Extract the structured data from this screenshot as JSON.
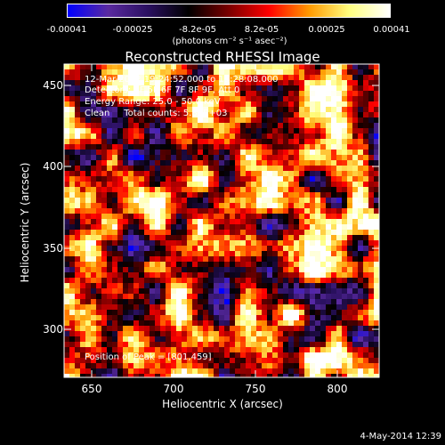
{
  "colorbar": {
    "ticks": [
      "-0.00041",
      "-0.00025",
      "-8.2e-05",
      "8.2e-05",
      "0.00025",
      "0.00041"
    ],
    "unit": "(photons cm⁻² s⁻¹ asec⁻²)",
    "range": [
      -0.00041,
      0.00041
    ]
  },
  "chart_data": {
    "type": "heatmap",
    "title": "Reconstructed RHESSI Image",
    "xlabel": "Heliocentric X (arcsec)",
    "ylabel": "Heliocentric Y (arcsec)",
    "xlim": [
      633,
      825
    ],
    "ylim": [
      268,
      463
    ],
    "xticks": [
      "650",
      "700",
      "750",
      "800"
    ],
    "yticks": [
      "450",
      "400",
      "350",
      "300"
    ],
    "colormap": [
      "#0000ff",
      "#5a2aa0",
      "#2a1060",
      "#000000",
      "#7a0000",
      "#ff0000",
      "#ff9a00",
      "#ffff80",
      "#ffffff"
    ],
    "annotations": {
      "time": "12-Mar-2012 19:24:52.000 to 19:28:08.000",
      "detectors": "Detectors: 3F 5F 6F 7F 8F 9F, Att 0",
      "energy": "Energy Range: 25.0 - 50.0 keV",
      "clean": "Clean     Total counts: 5.83E+03",
      "peak": "Position of Peak = [801,459]"
    },
    "peak_position": [
      801,
      459
    ]
  },
  "timestamp": "4-May-2014 12:39"
}
